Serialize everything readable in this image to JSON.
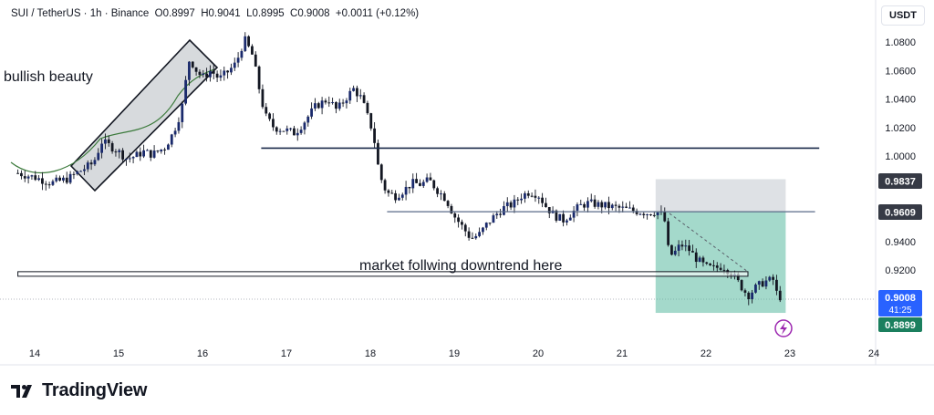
{
  "header": {
    "symbol": "SUI / TetherUS · 1h · Binance",
    "open": "O0.8997",
    "high": "H0.9041",
    "low": "L0.8995",
    "close": "C0.9008",
    "change": "+0.0011 (+0.12%)"
  },
  "currency": "USDT",
  "branding": {
    "name": "TradingView"
  },
  "colors": {
    "up_candle": "#1a2a6c",
    "down_candle": "#131722",
    "wick": "#131722",
    "level_line": "#1a2a4a",
    "profit_zone": "#5ab9a0",
    "stop_zone": "#c8cdd3",
    "current_price_label": "#2962ff",
    "target_price_label": "#1b7f5e",
    "level_price_label": "#363a45",
    "annotation_channel": "#c9cdd1"
  },
  "chart_data": {
    "type": "candlestick",
    "title": "",
    "y_axis": {
      "ticks": [
        1.08,
        1.06,
        1.04,
        1.02,
        1.0,
        0.94,
        0.92
      ],
      "range": [
        0.882,
        1.094
      ],
      "position": "right"
    },
    "x_axis": {
      "ticks": [
        "14",
        "15",
        "16",
        "17",
        "18",
        "19",
        "20",
        "21",
        "22",
        "23",
        "24"
      ]
    },
    "price_labels": [
      {
        "value": "0.9837",
        "kind": "stop"
      },
      {
        "value": "0.9609",
        "kind": "entry"
      },
      {
        "value": "0.9008",
        "kind": "current"
      },
      {
        "value": "41:25",
        "kind": "countdown"
      },
      {
        "value": "0.8899",
        "kind": "target"
      }
    ],
    "horizontal_levels": [
      {
        "price": 1.0055,
        "from_day": 16.7,
        "to_day": 23.35
      },
      {
        "price": 0.9609,
        "from_day": 18.2,
        "to_day": 23.3
      },
      {
        "price": 0.9172,
        "from_day": 13.8,
        "to_day": 22.5
      }
    ],
    "position_tool": {
      "from_day": 21.4,
      "to_day": 22.95,
      "stop": 0.9837,
      "entry": 0.9609,
      "target": 0.8899
    },
    "annotations": [
      {
        "text": "bullish beauty"
      },
      {
        "text": "market follwing downtrend here"
      }
    ],
    "price_path": [
      [
        13.8,
        0.988
      ],
      [
        14.0,
        0.985
      ],
      [
        14.2,
        0.981
      ],
      [
        14.4,
        0.984
      ],
      [
        14.5,
        0.988
      ],
      [
        14.7,
        0.995
      ],
      [
        14.8,
        1.01
      ],
      [
        14.9,
        1.007
      ],
      [
        15.0,
        1.003
      ],
      [
        15.1,
        0.998
      ],
      [
        15.2,
        1.0
      ],
      [
        15.3,
        1.003
      ],
      [
        15.4,
        1.001
      ],
      [
        15.55,
        1.006
      ],
      [
        15.65,
        1.016
      ],
      [
        15.75,
        1.032
      ],
      [
        15.8,
        1.052
      ],
      [
        15.85,
        1.07
      ],
      [
        15.9,
        1.062
      ],
      [
        16.0,
        1.055
      ],
      [
        16.1,
        1.06
      ],
      [
        16.2,
        1.054
      ],
      [
        16.3,
        1.059
      ],
      [
        16.4,
        1.065
      ],
      [
        16.5,
        1.082
      ],
      [
        16.6,
        1.07
      ],
      [
        16.7,
        1.04
      ],
      [
        16.75,
        1.028
      ],
      [
        16.85,
        1.02
      ],
      [
        17.0,
        1.018
      ],
      [
        17.1,
        1.016
      ],
      [
        17.2,
        1.023
      ],
      [
        17.35,
        1.035
      ],
      [
        17.5,
        1.04
      ],
      [
        17.6,
        1.032
      ],
      [
        17.7,
        1.04
      ],
      [
        17.8,
        1.047
      ],
      [
        17.9,
        1.04
      ],
      [
        17.95,
        1.03
      ],
      [
        18.0,
        1.023
      ],
      [
        18.05,
        1.01
      ],
      [
        18.1,
        0.99
      ],
      [
        18.15,
        0.98
      ],
      [
        18.2,
        0.974
      ],
      [
        18.3,
        0.972
      ],
      [
        18.4,
        0.976
      ],
      [
        18.5,
        0.981
      ],
      [
        18.6,
        0.98
      ],
      [
        18.7,
        0.983
      ],
      [
        18.8,
        0.976
      ],
      [
        18.9,
        0.97
      ],
      [
        19.0,
        0.958
      ],
      [
        19.1,
        0.95
      ],
      [
        19.2,
        0.942
      ],
      [
        19.3,
        0.945
      ],
      [
        19.4,
        0.953
      ],
      [
        19.5,
        0.959
      ],
      [
        19.6,
        0.964
      ],
      [
        19.7,
        0.966
      ],
      [
        19.8,
        0.972
      ],
      [
        19.9,
        0.975
      ],
      [
        20.0,
        0.973
      ],
      [
        20.1,
        0.964
      ],
      [
        20.2,
        0.958
      ],
      [
        20.3,
        0.955
      ],
      [
        20.4,
        0.96
      ],
      [
        20.5,
        0.965
      ],
      [
        20.6,
        0.967
      ],
      [
        20.7,
        0.966
      ],
      [
        20.8,
        0.965
      ],
      [
        20.9,
        0.964
      ],
      [
        21.0,
        0.963
      ],
      [
        21.1,
        0.962
      ],
      [
        21.2,
        0.961
      ],
      [
        21.3,
        0.96
      ],
      [
        21.4,
        0.961
      ],
      [
        21.5,
        0.958
      ],
      [
        21.55,
        0.935
      ],
      [
        21.6,
        0.93
      ],
      [
        21.7,
        0.938
      ],
      [
        21.8,
        0.934
      ],
      [
        21.9,
        0.927
      ],
      [
        22.0,
        0.922
      ],
      [
        22.1,
        0.921
      ],
      [
        22.2,
        0.923
      ],
      [
        22.3,
        0.918
      ],
      [
        22.4,
        0.91
      ],
      [
        22.5,
        0.902
      ],
      [
        22.6,
        0.908
      ],
      [
        22.7,
        0.912
      ],
      [
        22.8,
        0.913
      ],
      [
        22.85,
        0.902
      ],
      [
        22.9,
        0.9008
      ]
    ]
  }
}
